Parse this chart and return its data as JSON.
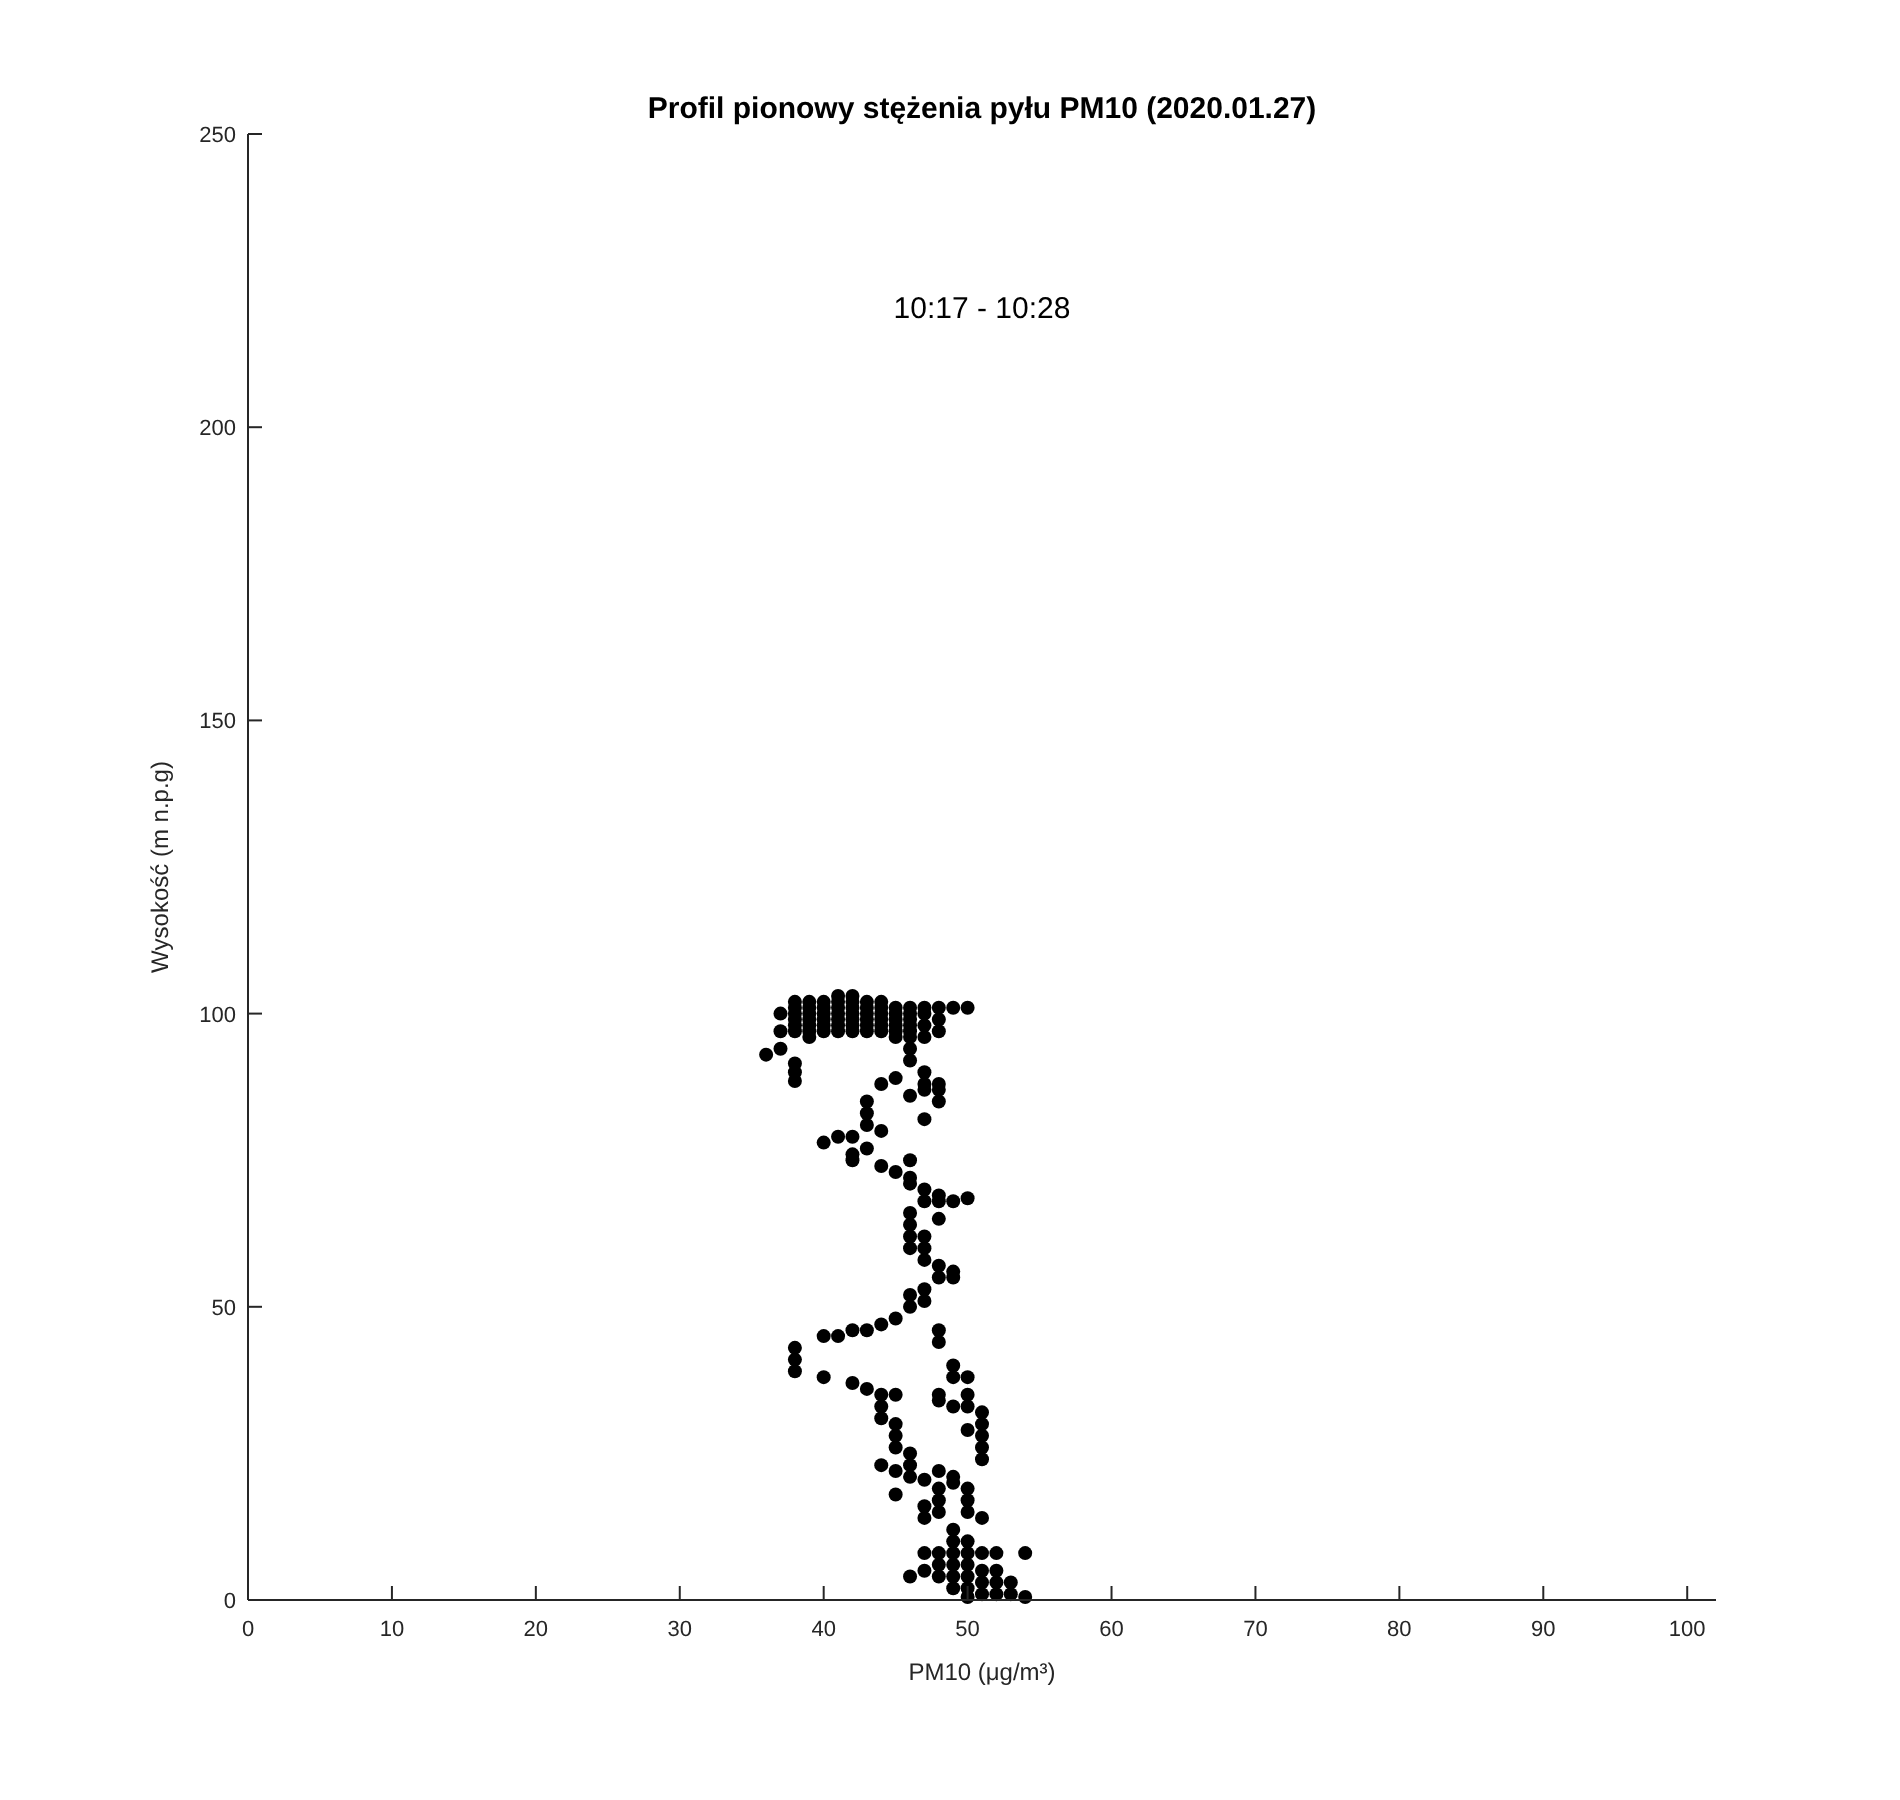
{
  "chart_data": {
    "type": "scatter",
    "title": "Profil pionowy stężenia pyłu PM10 (2020.01.27)",
    "subtitle": "10:17 - 10:28",
    "xlabel": "PM10 (μg/m³)",
    "ylabel": "Wysokość (m n.p.g)",
    "xlim": [
      0,
      102
    ],
    "xticks": [
      0,
      10,
      20,
      30,
      40,
      50,
      60,
      70,
      80,
      90,
      100
    ],
    "ylim": [
      0,
      250
    ],
    "yticks": [
      0,
      50,
      100,
      150,
      200,
      250
    ],
    "grid": false,
    "marker": "circle",
    "series": [
      {
        "color": "#000000",
        "x": [
          37,
          37,
          38,
          38,
          38,
          38,
          38,
          38,
          39,
          39,
          39,
          39,
          39,
          39,
          39,
          40,
          40,
          40,
          40,
          40,
          40,
          41,
          41,
          41,
          41,
          41,
          41,
          41,
          42,
          42,
          42,
          42,
          42,
          42,
          42,
          43,
          43,
          43,
          43,
          43,
          43,
          44,
          44,
          44,
          44,
          44,
          44,
          45,
          45,
          45,
          45,
          45,
          45,
          46,
          46,
          46,
          46,
          46,
          46,
          46,
          47,
          47,
          47,
          47,
          48,
          48,
          48,
          49,
          50,
          36,
          37,
          38,
          38,
          38,
          46,
          47,
          47,
          48,
          48,
          48,
          47,
          44,
          45,
          46,
          47,
          43,
          43,
          43,
          44,
          42,
          40,
          41,
          43,
          42,
          42,
          44,
          45,
          46,
          46,
          46,
          47,
          47,
          48,
          48,
          49,
          50,
          46,
          46,
          46,
          46,
          47,
          47,
          47,
          48,
          48,
          48,
          49,
          49,
          47,
          47,
          46,
          46,
          45,
          44,
          43,
          42,
          41,
          40,
          38,
          38,
          38,
          40,
          42,
          43,
          44,
          45,
          44,
          44,
          45,
          45,
          45,
          46,
          46,
          44,
          45,
          46,
          47,
          48,
          48,
          49,
          49,
          50,
          50,
          50,
          51,
          51,
          51,
          51,
          51,
          48,
          48,
          49,
          50,
          48,
          48,
          48,
          47,
          49,
          49,
          50,
          50,
          50,
          51,
          49,
          49,
          48,
          47,
          47,
          48,
          48,
          48,
          49,
          49,
          49,
          49,
          50,
          50,
          50,
          50,
          50,
          50,
          51,
          51,
          51,
          51,
          52,
          52,
          52,
          52,
          53,
          53,
          54,
          54,
          46,
          47,
          45
        ],
        "values": [
          97,
          100,
          97,
          98,
          99,
          100,
          101,
          102,
          96,
          97,
          98,
          99,
          100,
          101,
          102,
          97,
          98,
          99,
          100,
          101,
          102,
          97,
          98,
          99,
          100,
          101,
          102,
          103,
          97,
          98,
          99,
          100,
          101,
          102,
          103,
          97,
          98,
          99,
          100,
          101,
          102,
          97,
          98,
          99,
          100,
          101,
          102,
          96,
          97,
          98,
          99,
          100,
          101,
          94,
          96,
          97,
          98,
          99,
          100,
          101,
          96,
          98,
          100,
          101,
          97,
          99,
          101,
          101,
          101,
          93,
          94,
          88.5,
          90,
          91.5,
          92,
          90,
          88,
          87,
          85,
          88,
          82,
          88,
          89,
          86,
          87,
          85,
          83,
          81,
          80,
          79,
          78,
          79,
          77,
          76,
          75,
          74,
          73,
          75,
          72,
          71,
          70,
          68,
          69,
          68,
          68,
          68.5,
          66,
          64,
          62,
          60,
          62,
          60,
          58,
          57,
          55,
          65,
          56,
          55,
          53,
          51,
          52,
          50,
          48,
          47,
          46,
          46,
          45,
          45,
          43,
          41,
          39,
          38,
          37,
          36,
          35,
          35,
          33,
          31,
          30,
          28,
          26,
          25,
          23,
          23,
          22,
          21,
          20.5,
          46,
          44,
          40,
          38,
          38,
          35,
          33,
          32,
          30,
          28,
          26,
          24,
          35,
          34,
          33,
          29,
          19,
          17,
          15,
          16,
          20,
          21,
          19,
          17,
          15,
          14,
          12,
          10,
          22,
          14,
          8,
          8,
          6,
          4,
          8,
          6,
          4,
          2,
          10,
          8,
          6,
          4,
          2,
          0.5,
          8,
          5,
          3,
          1,
          8,
          5,
          3,
          1,
          3,
          1,
          8,
          0.5,
          4,
          5,
          18
        ]
      }
    ]
  }
}
